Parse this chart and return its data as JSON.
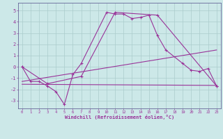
{
  "xlabel": "Windchill (Refroidissement éolien,°C)",
  "bg_color": "#cce8e8",
  "grid_color": "#aacccc",
  "line_color": "#993399",
  "spine_color": "#666699",
  "xlim": [
    -0.5,
    23.5
  ],
  "ylim": [
    -3.7,
    5.7
  ],
  "yticks": [
    -3,
    -2,
    -1,
    0,
    1,
    2,
    3,
    4,
    5
  ],
  "xticks": [
    0,
    1,
    2,
    3,
    4,
    5,
    6,
    7,
    8,
    9,
    10,
    11,
    12,
    13,
    14,
    15,
    16,
    17,
    18,
    19,
    20,
    21,
    22,
    23
  ],
  "line1_x": [
    0,
    1,
    2,
    3,
    4,
    5,
    6,
    7,
    10,
    11,
    12,
    13,
    14,
    15,
    16,
    17,
    19,
    20,
    21,
    22,
    23
  ],
  "line1_y": [
    0.0,
    -1.3,
    -1.3,
    -1.7,
    -2.2,
    -3.35,
    -0.7,
    0.3,
    4.85,
    4.7,
    4.7,
    4.3,
    4.4,
    4.6,
    2.8,
    1.5,
    0.3,
    -0.3,
    -0.4,
    -0.15,
    -1.7
  ],
  "line2_x": [
    0,
    3,
    7,
    11,
    16,
    23
  ],
  "line2_y": [
    0.0,
    -1.5,
    -0.85,
    4.85,
    4.6,
    -1.7
  ],
  "line3_x": [
    0,
    23
  ],
  "line3_y": [
    -1.3,
    1.5
  ],
  "line4_x": [
    0,
    23
  ],
  "line4_y": [
    -1.55,
    -1.65
  ]
}
